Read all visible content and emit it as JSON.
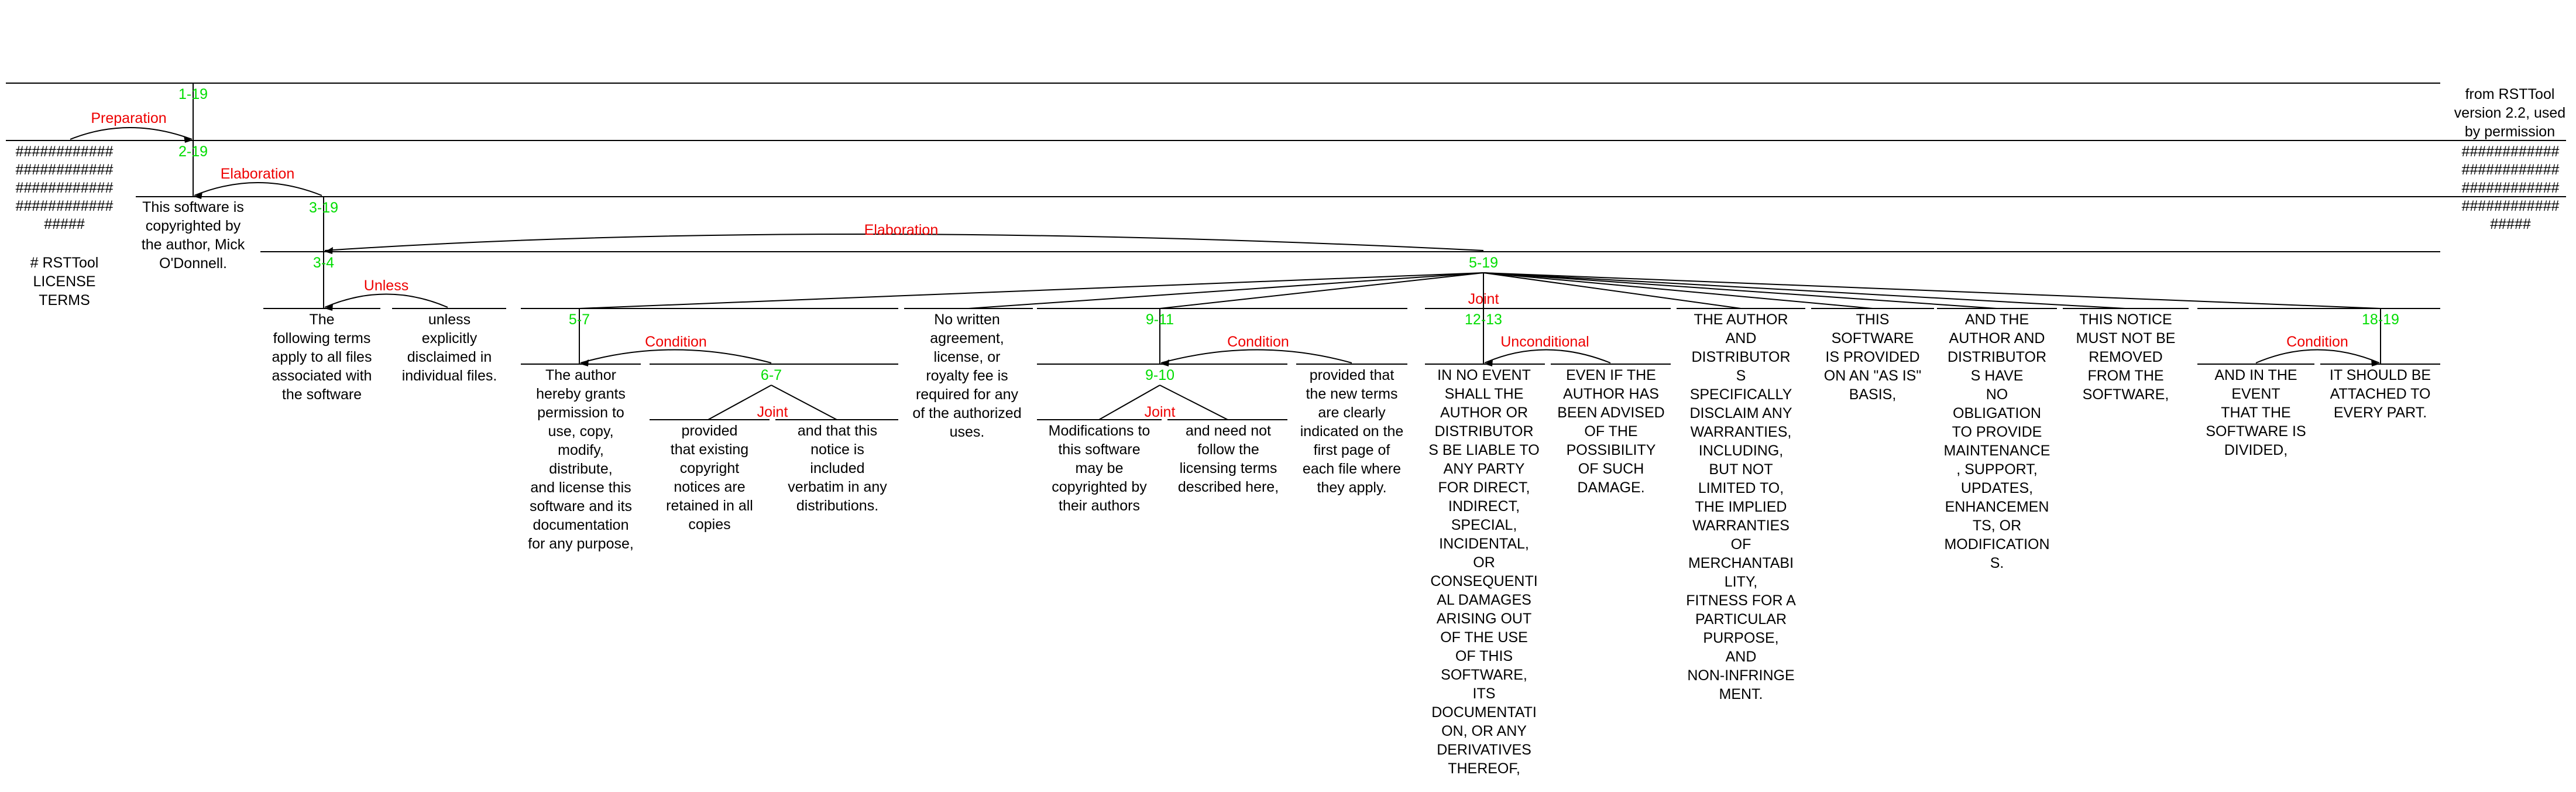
{
  "colors": {
    "span": "#00dd00",
    "relation": "#ee0000",
    "line": "#000000",
    "text": "#000000",
    "background": "#ffffff"
  },
  "spans": {
    "s1_19": "1-19",
    "s2_19": "2-19",
    "s3_19": "3-19",
    "s3_4": "3-4",
    "s5_19": "5-19",
    "s5_7": "5-7",
    "s6_7": "6-7",
    "s9_11": "9-11",
    "s9_10": "9-10",
    "s12_13": "12-13",
    "s18_19": "18-19"
  },
  "relations": {
    "preparation": "Preparation",
    "elaboration_a": "Elaboration",
    "elaboration_b": "Elaboration",
    "unless": "Unless",
    "joint_top": "Joint",
    "condition_a": "Condition",
    "joint_a": "Joint",
    "condition_b": "Condition",
    "joint_b": "Joint",
    "unconditional": "Unconditional",
    "condition_c": "Condition"
  },
  "segments": {
    "hash_left": "############\n############\n############\n############\n#####",
    "title": "# RSTTool\nLICENSE\nTERMS",
    "copyright": "This software is\ncopyrighted by\nthe author, Mick\nO'Donnell.",
    "following": "The\nfollowing terms\napply to all files\nassociated with\nthe software",
    "unless": "unless\nexplicitly\ndisclaimed in\nindividual files.",
    "grants": "The author\nhereby grants\npermission to\nuse, copy,\nmodify,\ndistribute,\nand license this\nsoftware and its\ndocumentation\nfor any purpose,",
    "provided1": "provided\nthat existing\ncopyright\nnotices are\nretained in all\ncopies",
    "andthat": "and that this\nnotice is\nincluded\nverbatim in any\ndistributions.",
    "nowritten": "No written\nagreement,\nlicense, or\nroyalty fee is\nrequired for any\nof the authorized\nuses.",
    "modifications": "Modifications to\nthis software\nmay be\ncopyrighted by\ntheir authors",
    "neednot": "and need not\nfollow the\nlicensing terms\ndescribed here,",
    "provided2": "provided that\nthe new terms\nare clearly\nindicated on the\nfirst page of\neach file where\nthey apply.",
    "noevent": "IN NO EVENT\nSHALL THE\nAUTHOR OR\nDISTRIBUTOR\nS BE LIABLE TO\nANY PARTY\nFOR DIRECT,\nINDIRECT,\nSPECIAL,\nINCIDENTAL,\nOR\nCONSEQUENTI\nAL DAMAGES\nARISING OUT\nOF THE USE\nOF THIS\nSOFTWARE,\nITS\nDOCUMENTATI\nON, OR ANY\nDERIVATIVES\nTHEREOF,",
    "evenif": "EVEN IF THE\nAUTHOR HAS\nBEEN ADVISED\nOF THE\nPOSSIBILITY\nOF SUCH\nDAMAGE.",
    "disclaim": "THE AUTHOR\nAND\nDISTRIBUTOR\nS\nSPECIFICALLY\nDISCLAIM ANY\nWARRANTIES,\nINCLUDING,\nBUT NOT\nLIMITED TO,\nTHE IMPLIED\nWARRANTIES\nOF\nMERCHANTABI\nLITY,\nFITNESS FOR A\nPARTICULAR\nPURPOSE,\nAND\nNON-INFRINGE\nMENT.",
    "asis": "THIS\nSOFTWARE\nIS PROVIDED\nON AN \"AS IS\"\nBASIS,",
    "noobligation": "AND THE\nAUTHOR AND\nDISTRIBUTOR\nS HAVE\nNO\nOBLIGATION\nTO PROVIDE\nMAINTENANCE\n, SUPPORT,\nUPDATES,\nENHANCEMEN\nTS, OR\nMODIFICATION\nS.",
    "notice": "THIS NOTICE\nMUST NOT BE\nREMOVED\nFROM THE\nSOFTWARE,",
    "divided": "AND IN THE\nEVENT\nTHAT THE\nSOFTWARE IS\nDIVIDED,",
    "attached": "IT SHOULD BE\nATTACHED TO\nEVERY PART.",
    "credit": "from RSTTool\nversion 2.2, used\nby permission",
    "hash_right": "############\n############\n############\n############\n#####"
  }
}
